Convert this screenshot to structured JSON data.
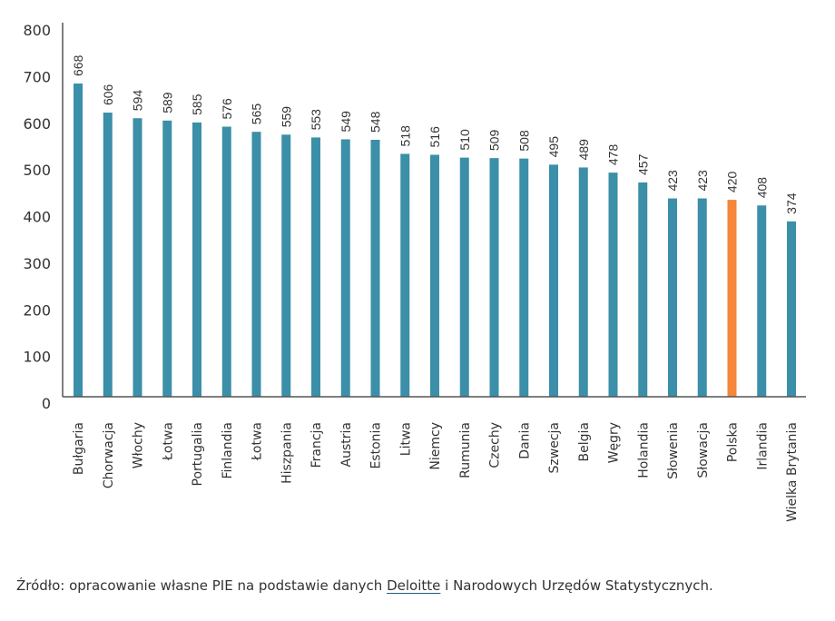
{
  "chart_data": {
    "type": "bar",
    "title": "",
    "xlabel": "",
    "ylabel": "",
    "ylim": [
      0,
      800
    ],
    "yticks": [
      0,
      100,
      200,
      300,
      400,
      500,
      600,
      700,
      800
    ],
    "grid": false,
    "categories": [
      "Bułgaria",
      "Chorwacja",
      "Włochy",
      "Łotwa",
      "Portugalia",
      "Finlandia",
      "Łotwa",
      "Hiszpania",
      "Francja",
      "Austria",
      "Estonia",
      "Litwa",
      "Niemcy",
      "Rumunia",
      "Czechy",
      "Dania",
      "Szwecja",
      "Belgia",
      "Węgry",
      "Holandia",
      "Słowenia",
      "Słowacja",
      "Polska",
      "Irlandia",
      "Wielka Brytania"
    ],
    "values": [
      668,
      606,
      594,
      589,
      585,
      576,
      565,
      559,
      553,
      549,
      548,
      518,
      516,
      510,
      509,
      508,
      495,
      489,
      478,
      457,
      423,
      423,
      420,
      408,
      374
    ],
    "highlight": "Polska",
    "colors": {
      "default": "#3b8fa8",
      "highlight": "#f5863a",
      "axis": "#555555"
    }
  },
  "source": {
    "prefix": "Źródło: opracowanie własne PIE na podstawie danych ",
    "link": "Deloitte",
    "suffix": " i Narodowych Urzędów Statystycznych."
  }
}
